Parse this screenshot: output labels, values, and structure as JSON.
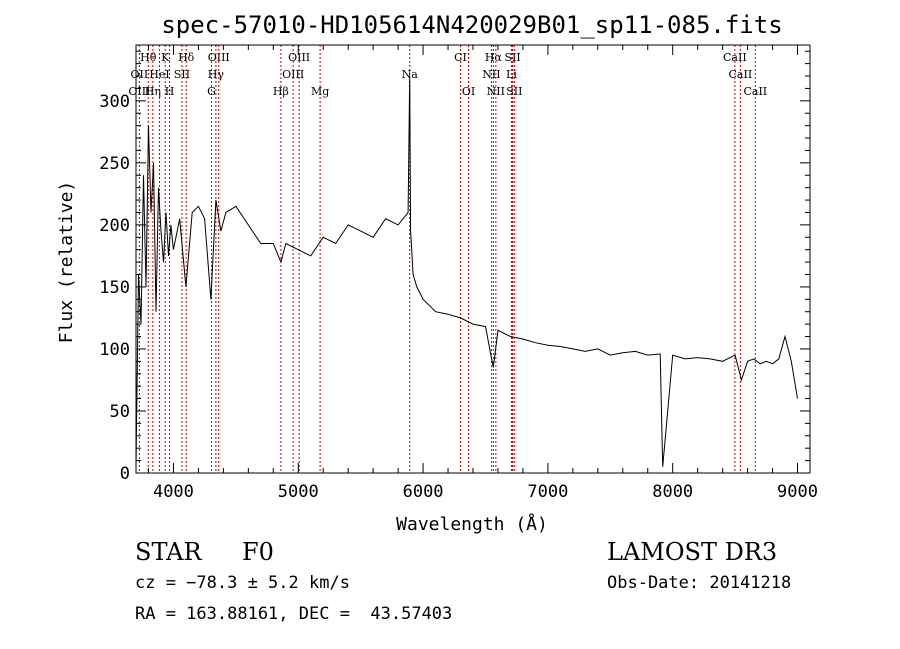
{
  "chart_data": {
    "type": "line",
    "title": "spec-57010-HD105614N420029B01_sp11-085.fits",
    "xlabel": "Wavelength (Å)",
    "ylabel": "Flux (relative)",
    "xlim": [
      3700,
      9100
    ],
    "ylim": [
      0,
      345
    ],
    "xticks": [
      4000,
      5000,
      6000,
      7000,
      8000,
      9000
    ],
    "yticks": [
      0,
      50,
      100,
      150,
      200,
      250,
      300
    ],
    "grid": false,
    "line_color": "#000000",
    "marker_color": "#cc0000",
    "series": [
      {
        "x": [
          3700,
          3720,
          3740,
          3760,
          3780,
          3800,
          3820,
          3840,
          3860,
          3880,
          3900,
          3920,
          3940,
          3960,
          3980,
          4000,
          4050,
          4100,
          4150,
          4200,
          4250,
          4300,
          4340,
          4380,
          4420,
          4500,
          4600,
          4700,
          4800,
          4861,
          4900,
          5000,
          5100,
          5200,
          5300,
          5400,
          5500,
          5600,
          5700,
          5800,
          5880,
          5893,
          5900,
          5920,
          5950,
          6000,
          6100,
          6200,
          6300,
          6400,
          6500,
          6563,
          6600,
          6700,
          6800,
          6900,
          7000,
          7100,
          7200,
          7300,
          7400,
          7500,
          7600,
          7700,
          7800,
          7900,
          7920,
          8000,
          8100,
          8200,
          8300,
          8400,
          8500,
          8550,
          8600,
          8650,
          8700,
          8750,
          8800,
          8850,
          8900,
          8950,
          9000
        ],
        "y": [
          5,
          160,
          120,
          240,
          150,
          280,
          210,
          250,
          130,
          230,
          195,
          170,
          210,
          175,
          200,
          180,
          205,
          150,
          210,
          215,
          205,
          140,
          220,
          195,
          210,
          215,
          200,
          185,
          185,
          170,
          185,
          180,
          175,
          190,
          185,
          200,
          195,
          190,
          205,
          200,
          210,
          320,
          195,
          160,
          150,
          140,
          130,
          128,
          125,
          120,
          118,
          85,
          115,
          110,
          108,
          105,
          103,
          102,
          100,
          98,
          100,
          95,
          97,
          98,
          95,
          96,
          5,
          95,
          92,
          93,
          92,
          90,
          95,
          75,
          90,
          92,
          88,
          90,
          88,
          92,
          110,
          90,
          60
        ]
      }
    ],
    "line_labels": [
      {
        "text": "Hθ",
        "x": 3798,
        "row": 1
      },
      {
        "text": "K",
        "x": 3934,
        "row": 1
      },
      {
        "text": "Hδ",
        "x": 4102,
        "row": 1
      },
      {
        "text": "OIII",
        "x": 4363,
        "row": 1
      },
      {
        "text": "OIII",
        "x": 5007,
        "row": 1
      },
      {
        "text": "CI",
        "x": 6300,
        "row": 1
      },
      {
        "text": "Hα",
        "x": 6563,
        "row": 1
      },
      {
        "text": "SII",
        "x": 6717,
        "row": 1
      },
      {
        "text": "CaII",
        "x": 8498,
        "row": 1
      },
      {
        "text": "OII",
        "x": 3727,
        "row": 2
      },
      {
        "text": "HeI",
        "x": 3888,
        "row": 2
      },
      {
        "text": "SII",
        "x": 4068,
        "row": 2
      },
      {
        "text": "Hγ",
        "x": 4340,
        "row": 2
      },
      {
        "text": "OIII",
        "x": 4959,
        "row": 2
      },
      {
        "text": "Na",
        "x": 5893,
        "row": 2
      },
      {
        "text": "NII",
        "x": 6548,
        "row": 2
      },
      {
        "text": "Li",
        "x": 6708,
        "row": 2
      },
      {
        "text": "CaII",
        "x": 8542,
        "row": 2
      },
      {
        "text": "OIII",
        "x": 3727,
        "row": 3
      },
      {
        "text": "Hη",
        "x": 3835,
        "row": 3
      },
      {
        "text": "H",
        "x": 3969,
        "row": 3
      },
      {
        "text": "G",
        "x": 4305,
        "row": 3
      },
      {
        "text": "Hβ",
        "x": 4861,
        "row": 3
      },
      {
        "text": "Mg",
        "x": 5175,
        "row": 3
      },
      {
        "text": "OI",
        "x": 6364,
        "row": 3
      },
      {
        "text": "NII",
        "x": 6583,
        "row": 3
      },
      {
        "text": "SII",
        "x": 6731,
        "row": 3
      },
      {
        "text": "CaII",
        "x": 8662,
        "row": 3
      }
    ],
    "line_markers": [
      3727,
      3798,
      3835,
      3888,
      3934,
      3969,
      4068,
      4102,
      4305,
      4340,
      4363,
      4861,
      4959,
      5007,
      5175,
      5893,
      6300,
      6364,
      6548,
      6563,
      6583,
      6708,
      6717,
      6731,
      8498,
      8542,
      8662
    ]
  },
  "info": {
    "object_class": "STAR",
    "subclass": "F0",
    "survey": "LAMOST DR3",
    "redshift": "cz = −78.3 ± 5.2 km/s",
    "obs_date": "Obs-Date: 20141218",
    "coords": "RA = 163.88161, DEC =  43.57403"
  }
}
